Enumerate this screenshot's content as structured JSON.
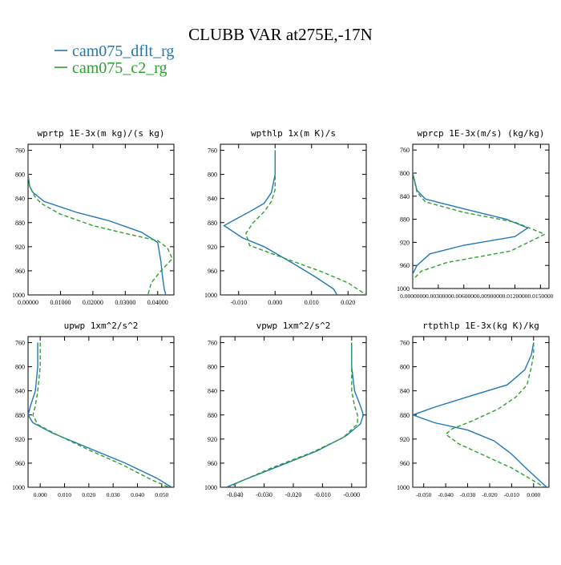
{
  "figure": {
    "title": "CLUBB VAR at275E,-17N",
    "legend": [
      {
        "label": "cam075_dflt_rg",
        "color": "#1f77b4",
        "style": "solid"
      },
      {
        "label": "cam075_c2_rg",
        "color": "#2ca02c",
        "style": "dashed"
      }
    ]
  },
  "chart_data": [
    {
      "type": "line",
      "title": "wprtp  1E-3x(m kg)/(s kg)",
      "xlim": [
        0,
        0.045
      ],
      "ylim": [
        1000,
        750
      ],
      "xticks": [
        "0.00000",
        "0.01000",
        "0.02000",
        "0.03000",
        "0.04000"
      ],
      "xtick_values": [
        0,
        0.01,
        0.02,
        0.03,
        0.04
      ],
      "yticks": [
        "760",
        "800",
        "840",
        "880",
        "920",
        "960",
        "1000"
      ],
      "ytick_values": [
        760,
        800,
        840,
        880,
        920,
        960,
        1000
      ],
      "series": [
        {
          "name": "cam075_dflt_rg",
          "color": "#1f77b4",
          "dash": "",
          "points": [
            [
              0,
              760
            ],
            [
              0,
              800
            ],
            [
              0.0005,
              820
            ],
            [
              0.0015,
              830
            ],
            [
              0.005,
              845
            ],
            [
              0.015,
              863
            ],
            [
              0.025,
              877
            ],
            [
              0.035,
              896
            ],
            [
              0.04,
              913
            ],
            [
              0.041,
              945
            ],
            [
              0.0415,
              970
            ],
            [
              0.042,
              990
            ],
            [
              0.0425,
              1000
            ]
          ]
        },
        {
          "name": "cam075_c2_rg",
          "color": "#2ca02c",
          "dash": "5,3",
          "points": [
            [
              0,
              760
            ],
            [
              0,
              800
            ],
            [
              0.0005,
              820
            ],
            [
              0.002,
              836
            ],
            [
              0.004,
              848
            ],
            [
              0.01,
              866
            ],
            [
              0.02,
              885
            ],
            [
              0.03,
              898
            ],
            [
              0.04,
              910
            ],
            [
              0.043,
              922
            ],
            [
              0.0445,
              940
            ],
            [
              0.041,
              960
            ],
            [
              0.038,
              980
            ],
            [
              0.037,
              1000
            ]
          ]
        }
      ]
    },
    {
      "type": "line",
      "title": "wpthlp  1x(m K)/s",
      "xlim": [
        -0.015,
        0.025
      ],
      "ylim": [
        1000,
        750
      ],
      "xticks": [
        "-0.010",
        "0.000",
        "0.010",
        "0.020"
      ],
      "xtick_values": [
        -0.01,
        0,
        0.01,
        0.02
      ],
      "yticks": [
        "760",
        "800",
        "840",
        "880",
        "920",
        "960",
        "1000"
      ],
      "ytick_values": [
        760,
        800,
        840,
        880,
        920,
        960,
        1000
      ],
      "series": [
        {
          "name": "cam075_dflt_rg",
          "color": "#1f77b4",
          "dash": "",
          "points": [
            [
              0,
              760
            ],
            [
              0,
              800
            ],
            [
              -0.001,
              830
            ],
            [
              -0.003,
              848
            ],
            [
              -0.007,
              862
            ],
            [
              -0.011,
              875
            ],
            [
              -0.014,
              885
            ],
            [
              -0.009,
              905
            ],
            [
              -0.003,
              920
            ],
            [
              0.005,
              948
            ],
            [
              0.011,
              970
            ],
            [
              0.016,
              990
            ],
            [
              0.017,
              1000
            ]
          ]
        },
        {
          "name": "cam075_c2_rg",
          "color": "#2ca02c",
          "dash": "5,3",
          "points": [
            [
              0,
              760
            ],
            [
              0,
              800
            ],
            [
              0,
              825
            ],
            [
              -0.001,
              845
            ],
            [
              -0.003,
              862
            ],
            [
              -0.006,
              880
            ],
            [
              -0.008,
              898
            ],
            [
              -0.007,
              918
            ],
            [
              0.003,
              940
            ],
            [
              0.013,
              962
            ],
            [
              0.02,
              980
            ],
            [
              0.025,
              1000
            ]
          ]
        }
      ]
    },
    {
      "type": "line",
      "title": "wprcp  1E-3x(m/s) (kg/kg)",
      "xlim": [
        0,
        0.016
      ],
      "ylim": [
        1000,
        750
      ],
      "xticks": [
        "0.0000000",
        "0.0030000",
        "0.0060000",
        "0.0090000",
        "0.0120000",
        "0.0150000"
      ],
      "xtick_values": [
        0,
        0.003,
        0.006,
        0.009,
        0.012,
        0.015
      ],
      "yticks": [
        "760",
        "800",
        "840",
        "880",
        "920",
        "960",
        "1000"
      ],
      "ytick_values": [
        760,
        800,
        840,
        880,
        920,
        960,
        1000
      ],
      "series": [
        {
          "name": "cam075_dflt_rg",
          "color": "#1f77b4",
          "dash": "",
          "points": [
            [
              0,
              760
            ],
            [
              0,
              800
            ],
            [
              0.0005,
              830
            ],
            [
              0.0015,
              845
            ],
            [
              0.006,
              862
            ],
            [
              0.011,
              880
            ],
            [
              0.0135,
              895
            ],
            [
              0.012,
              910
            ],
            [
              0.006,
              925
            ],
            [
              0.002,
              940
            ],
            [
              0.0005,
              960
            ],
            [
              0,
              975
            ],
            [
              0,
              1000
            ]
          ]
        },
        {
          "name": "cam075_c2_rg",
          "color": "#2ca02c",
          "dash": "5,3",
          "points": [
            [
              0,
              760
            ],
            [
              0,
              800
            ],
            [
              0.0005,
              833
            ],
            [
              0.0015,
              850
            ],
            [
              0.006,
              868
            ],
            [
              0.012,
              885
            ],
            [
              0.0155,
              906
            ],
            [
              0.0115,
              935
            ],
            [
              0.004,
              955
            ],
            [
              0.001,
              970
            ],
            [
              0,
              985
            ],
            [
              0,
              1000
            ]
          ]
        }
      ]
    },
    {
      "type": "line",
      "title": "upwp  1xm^2/s^2",
      "xlim": [
        -0.005,
        0.055
      ],
      "ylim": [
        1000,
        750
      ],
      "xticks": [
        "0.000",
        "0.010",
        "0.020",
        "0.030",
        "0.040",
        "0.050"
      ],
      "xtick_values": [
        0,
        0.01,
        0.02,
        0.03,
        0.04,
        0.05
      ],
      "yticks": [
        "760",
        "800",
        "840",
        "880",
        "920",
        "960",
        "1000"
      ],
      "ytick_values": [
        760,
        800,
        840,
        880,
        920,
        960,
        1000
      ],
      "series": [
        {
          "name": "cam075_dflt_rg",
          "color": "#1f77b4",
          "dash": "",
          "points": [
            [
              -0.001,
              760
            ],
            [
              -0.001,
              800
            ],
            [
              -0.002,
              840
            ],
            [
              -0.004,
              865
            ],
            [
              -0.005,
              880
            ],
            [
              -0.003,
              893
            ],
            [
              0.005,
              910
            ],
            [
              0.02,
              935
            ],
            [
              0.035,
              960
            ],
            [
              0.048,
              985
            ],
            [
              0.054,
              1000
            ]
          ]
        },
        {
          "name": "cam075_c2_rg",
          "color": "#2ca02c",
          "dash": "5,3",
          "points": [
            [
              0,
              760
            ],
            [
              0,
              800
            ],
            [
              -0.001,
              840
            ],
            [
              -0.002,
              865
            ],
            [
              -0.003,
              880
            ],
            [
              -0.001,
              896
            ],
            [
              0.007,
              913
            ],
            [
              0.02,
              938
            ],
            [
              0.034,
              963
            ],
            [
              0.046,
              988
            ],
            [
              0.053,
              1000
            ]
          ]
        }
      ]
    },
    {
      "type": "line",
      "title": "vpwp  1xm^2/s^2",
      "xlim": [
        -0.045,
        0.005
      ],
      "ylim": [
        1000,
        750
      ],
      "xticks": [
        "-0.040",
        "-0.030",
        "-0.020",
        "-0.010",
        "-0.000"
      ],
      "xtick_values": [
        -0.04,
        -0.03,
        -0.02,
        -0.01,
        0
      ],
      "yticks": [
        "760",
        "800",
        "840",
        "880",
        "920",
        "960",
        "1000"
      ],
      "ytick_values": [
        760,
        800,
        840,
        880,
        920,
        960,
        1000
      ],
      "series": [
        {
          "name": "cam075_dflt_rg",
          "color": "#1f77b4",
          "dash": "",
          "points": [
            [
              0,
              760
            ],
            [
              0,
              800
            ],
            [
              0.001,
              840
            ],
            [
              0.003,
              865
            ],
            [
              0.004,
              880
            ],
            [
              0.003,
              895
            ],
            [
              -0.002,
              915
            ],
            [
              -0.012,
              940
            ],
            [
              -0.025,
              965
            ],
            [
              -0.037,
              988
            ],
            [
              -0.043,
              1000
            ]
          ]
        },
        {
          "name": "cam075_c2_rg",
          "color": "#2ca02c",
          "dash": "5,3",
          "points": [
            [
              0,
              760
            ],
            [
              0,
              800
            ],
            [
              0,
              840
            ],
            [
              0.001,
              865
            ],
            [
              0.002,
              880
            ],
            [
              0.002,
              895
            ],
            [
              -0.003,
              918
            ],
            [
              -0.014,
              943
            ],
            [
              -0.027,
              967
            ],
            [
              -0.038,
              990
            ],
            [
              -0.042,
              1000
            ]
          ]
        }
      ]
    },
    {
      "type": "line",
      "title": "rtpthlp  1E-3x(kg K)/kg",
      "xlim": [
        -0.055,
        0.007
      ],
      "ylim": [
        1000,
        750
      ],
      "xticks": [
        "-0.050",
        "-0.040",
        "-0.030",
        "-0.020",
        "-0.010",
        "0.000"
      ],
      "xtick_values": [
        -0.05,
        -0.04,
        -0.03,
        -0.02,
        -0.01,
        0
      ],
      "yticks": [
        "760",
        "800",
        "840",
        "880",
        "920",
        "960",
        "1000"
      ],
      "ytick_values": [
        760,
        800,
        840,
        880,
        920,
        960,
        1000
      ],
      "series": [
        {
          "name": "cam075_dflt_rg",
          "color": "#1f77b4",
          "dash": "",
          "points": [
            [
              0,
              760
            ],
            [
              -0.001,
              780
            ],
            [
              -0.004,
              805
            ],
            [
              -0.012,
              830
            ],
            [
              -0.03,
              850
            ],
            [
              -0.045,
              867
            ],
            [
              -0.055,
              880
            ],
            [
              -0.045,
              893
            ],
            [
              -0.03,
              905
            ],
            [
              -0.018,
              923
            ],
            [
              -0.01,
              945
            ],
            [
              -0.003,
              970
            ],
            [
              0.003,
              990
            ],
            [
              0.006,
              1000
            ]
          ]
        },
        {
          "name": "cam075_c2_rg",
          "color": "#2ca02c",
          "dash": "5,3",
          "points": [
            [
              0,
              760
            ],
            [
              0,
              780
            ],
            [
              -0.001,
              800
            ],
            [
              -0.003,
              830
            ],
            [
              -0.008,
              850
            ],
            [
              -0.016,
              870
            ],
            [
              -0.028,
              890
            ],
            [
              -0.037,
              903
            ],
            [
              -0.04,
              912
            ],
            [
              -0.034,
              928
            ],
            [
              -0.022,
              948
            ],
            [
              -0.01,
              968
            ],
            [
              -0.002,
              985
            ],
            [
              0.005,
              1000
            ]
          ]
        }
      ]
    }
  ]
}
